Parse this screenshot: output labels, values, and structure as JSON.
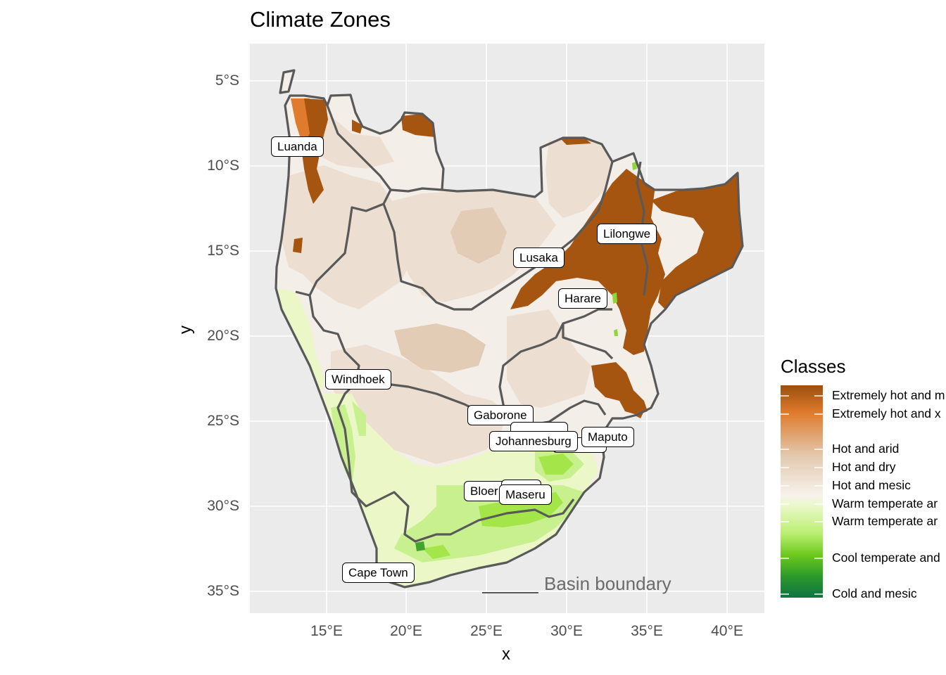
{
  "title": "Climate Zones",
  "axes": {
    "x_title": "x",
    "y_title": "y",
    "x_ticks": [
      "15°E",
      "20°E",
      "25°E",
      "30°E",
      "35°E",
      "40°E"
    ],
    "y_ticks": [
      "5°S",
      "10°S",
      "15°S",
      "20°S",
      "25°S",
      "30°S",
      "35°S"
    ]
  },
  "cities": [
    {
      "name": "Luanda"
    },
    {
      "name": "Lilongwe"
    },
    {
      "name": "Lusaka"
    },
    {
      "name": "Harare"
    },
    {
      "name": "Windhoek"
    },
    {
      "name": "Gaborone"
    },
    {
      "name": "Johannesburg"
    },
    {
      "name": "Maputo"
    },
    {
      "name": "Bloer"
    },
    {
      "name": "Maseru"
    },
    {
      "name": "Cape Town"
    }
  ],
  "annotation": "Basin boundary",
  "legend": {
    "title": "Classes",
    "labels": [
      "Extremely hot and m",
      "Extremely hot and x",
      "Hot and arid",
      "Hot and dry",
      "Hot and mesic",
      "Warm temperate ar",
      "Warm temperate ar",
      "Cool temperate and",
      "Cold and mesic"
    ]
  },
  "colors": {
    "panel_bg": "#ebebeb",
    "grid": "#ffffff",
    "boundary": "#595959",
    "extremely_hot_mesic": "#a6550f",
    "extremely_hot_xeric": "#e08030",
    "hot_arid": "#e6d2bd",
    "hot_dry": "#efe3d6",
    "hot_mesic": "#f5efe9",
    "warm_temperate_1": "#ecf8c9",
    "warm_temperate_2": "#c6f28a",
    "cool_temperate": "#69c21e",
    "cold_mesic": "#1e7b3c"
  }
}
